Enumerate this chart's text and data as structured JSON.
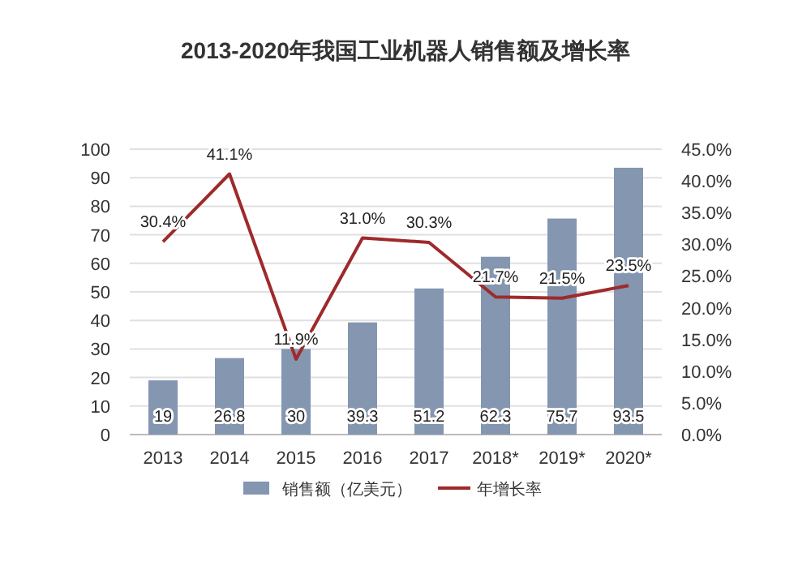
{
  "chart_data": {
    "type": "bar",
    "title": "2013-2020年我国工业机器人销售额及增长率",
    "categories": [
      "2013",
      "2014",
      "2015",
      "2016",
      "2017",
      "2018*",
      "2019*",
      "2020*"
    ],
    "series": [
      {
        "name": "销售额（亿美元）",
        "color": "#8496b0",
        "values": [
          19,
          26.8,
          30,
          39.3,
          51.2,
          62.3,
          75.7,
          93.5
        ],
        "value_labels": [
          "19",
          "26.8",
          "30",
          "39.3",
          "51.2",
          "62.3",
          "75.7",
          "93.5"
        ]
      },
      {
        "name": "年增长率",
        "type": "line",
        "axis": "y2",
        "color": "#9e2a2b",
        "values": [
          30.4,
          41.1,
          11.9,
          31.0,
          30.3,
          21.7,
          21.5,
          23.5
        ],
        "value_labels": [
          "30.4%",
          "41.1%",
          "11.9%",
          "31.0%",
          "30.3%",
          "21.7%",
          "21.5%",
          "23.5%"
        ]
      }
    ],
    "ylim": [
      0,
      100
    ],
    "yticks": [
      0,
      10,
      20,
      30,
      40,
      50,
      60,
      70,
      80,
      90,
      100
    ],
    "y2lim": [
      0,
      45
    ],
    "y2ticks": [
      {
        "value": 0,
        "label": "0.0%"
      },
      {
        "value": 5,
        "label": "5.0%"
      },
      {
        "value": 10,
        "label": "10.0%"
      },
      {
        "value": 15,
        "label": "15.0%"
      },
      {
        "value": 20,
        "label": "20.0%"
      },
      {
        "value": 25,
        "label": "25.0%"
      },
      {
        "value": 30,
        "label": "30.0%"
      },
      {
        "value": 35,
        "label": "35.0%"
      },
      {
        "value": 40,
        "label": "40.0%"
      },
      {
        "value": 45,
        "label": "45.0%"
      }
    ],
    "grid": "y",
    "legend": "bottom"
  }
}
